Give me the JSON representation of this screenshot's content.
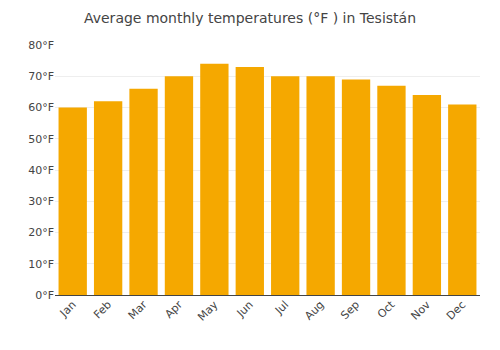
{
  "chart_data": {
    "type": "bar",
    "title": "Average monthly temperatures (°F ) in Tesistán",
    "categories": [
      "Jan",
      "Feb",
      "Mar",
      "Apr",
      "May",
      "Jun",
      "Jul",
      "Aug",
      "Sep",
      "Oct",
      "Nov",
      "Dec"
    ],
    "values": [
      60,
      62,
      66,
      70,
      74,
      73,
      70,
      70,
      69,
      67,
      64,
      61
    ],
    "color": "#F5A800",
    "ylim": [
      0,
      80
    ],
    "yticks": [
      {
        "value": 0,
        "label": "0°F"
      },
      {
        "value": 10,
        "label": "10°F"
      },
      {
        "value": 20,
        "label": "20°F"
      },
      {
        "value": 30,
        "label": "30°F"
      },
      {
        "value": 40,
        "label": "40°F"
      },
      {
        "value": 50,
        "label": "50°F"
      },
      {
        "value": 60,
        "label": "60°F"
      },
      {
        "value": 70,
        "label": "70°F"
      },
      {
        "value": 80,
        "label": "80°F"
      }
    ],
    "grid": true
  }
}
